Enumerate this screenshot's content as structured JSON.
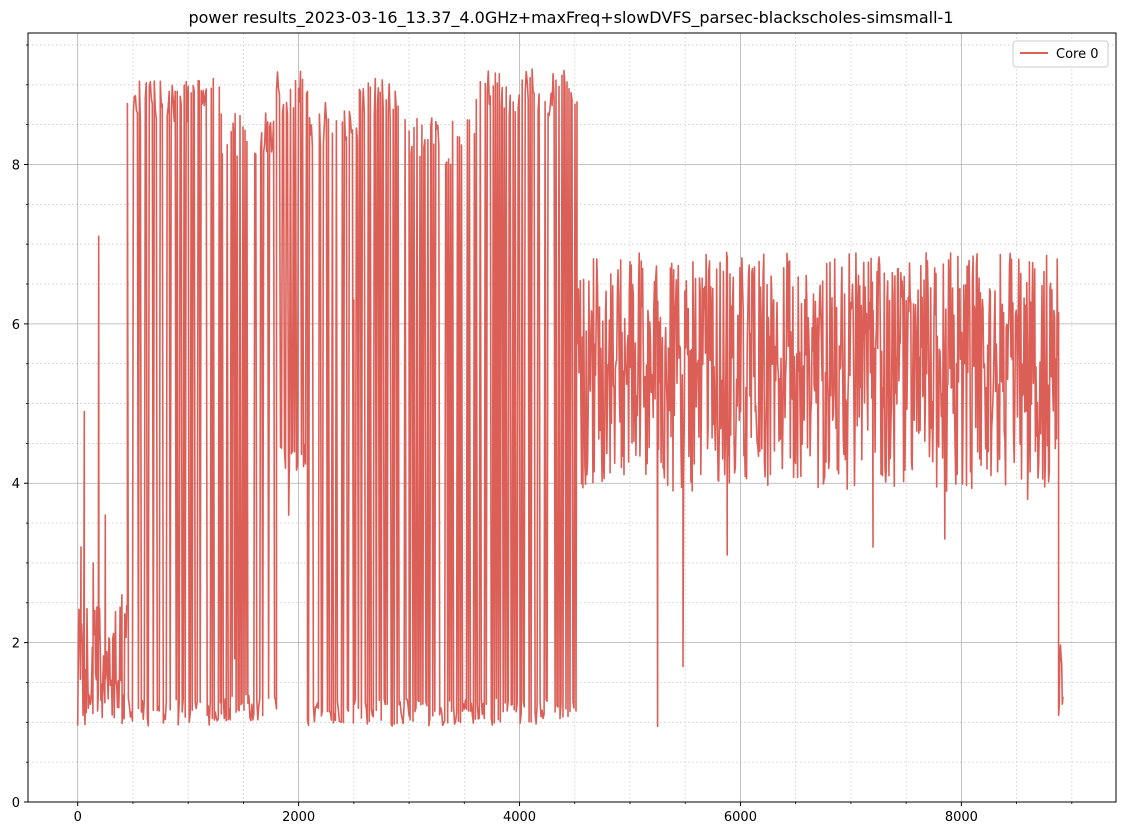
{
  "colors": {
    "series": "#dc5f57",
    "grid_major": "#b0b0b0",
    "grid_minor": "#c8c8c8",
    "axis": "#000000",
    "legend_border": "#cccccc"
  },
  "chart_data": {
    "type": "line",
    "title": "power results_2023-03-16_13.37_4.0GHz+maxFreq+slowDVFS_parsec-blackscholes-simsmall-1",
    "xlabel": "",
    "ylabel": "",
    "xlim": [
      -450,
      9400
    ],
    "ylim": [
      0,
      9.65
    ],
    "x_ticks": [
      0,
      2000,
      4000,
      6000,
      8000
    ],
    "x_tick_labels": [
      "0",
      "2000",
      "4000",
      "6000",
      "8000"
    ],
    "y_ticks": [
      0,
      2,
      4,
      6,
      8
    ],
    "y_tick_labels": [
      "0",
      "2",
      "4",
      "6",
      "8"
    ],
    "x_minor_step": 500,
    "y_minor_step": 0.5,
    "grid": "major solid, minor dotted",
    "legend_position": "top-right",
    "series": [
      {
        "name": "Core 0",
        "color": "#dc5f57",
        "segments": [
          {
            "x_start": 0,
            "x_end": 450,
            "low": 0.9,
            "high": 2.5,
            "spikes": [
              [
                30,
                3.2
              ],
              [
                60,
                4.9
              ],
              [
                140,
                3.0
              ],
              [
                190,
                7.1
              ],
              [
                250,
                3.6
              ],
              [
                400,
                2.6
              ]
            ]
          },
          {
            "x_start": 450,
            "x_end": 1000,
            "low": 0.95,
            "high": 9.1,
            "spikes": []
          },
          {
            "x_start": 1000,
            "x_end": 1300,
            "low": 0.95,
            "high": 9.15,
            "spikes": []
          },
          {
            "x_start": 1300,
            "x_end": 1800,
            "low": 1.0,
            "high": 8.7,
            "spikes": [
              [
                1420,
                1.8
              ],
              [
                1480,
                1.8
              ]
            ]
          },
          {
            "x_start": 1800,
            "x_end": 2080,
            "low": 4.15,
            "high": 9.2,
            "spikes": [
              [
                1910,
                3.6
              ]
            ]
          },
          {
            "x_start": 2080,
            "x_end": 2550,
            "low": 0.95,
            "high": 8.8,
            "spikes": [
              [
                2500,
                6.3
              ]
            ]
          },
          {
            "x_start": 2550,
            "x_end": 3000,
            "low": 0.95,
            "high": 9.1,
            "spikes": []
          },
          {
            "x_start": 3000,
            "x_end": 3600,
            "low": 0.95,
            "high": 8.6,
            "spikes": [
              [
                3450,
                5.7
              ]
            ]
          },
          {
            "x_start": 3600,
            "x_end": 4520,
            "low": 0.95,
            "high": 9.2,
            "spikes": [
              [
                4480,
                3.5
              ]
            ]
          },
          {
            "x_start": 4520,
            "x_end": 8880,
            "low": 3.9,
            "high": 6.9,
            "spikes": [
              [
                5250,
                0.95
              ],
              [
                5480,
                1.7
              ],
              [
                5880,
                3.1
              ],
              [
                7200,
                3.2
              ],
              [
                7850,
                3.3
              ],
              [
                8600,
                3.8
              ]
            ]
          },
          {
            "x_start": 8880,
            "x_end": 8920,
            "low": 0.95,
            "high": 2.0,
            "spikes": []
          }
        ]
      }
    ]
  }
}
